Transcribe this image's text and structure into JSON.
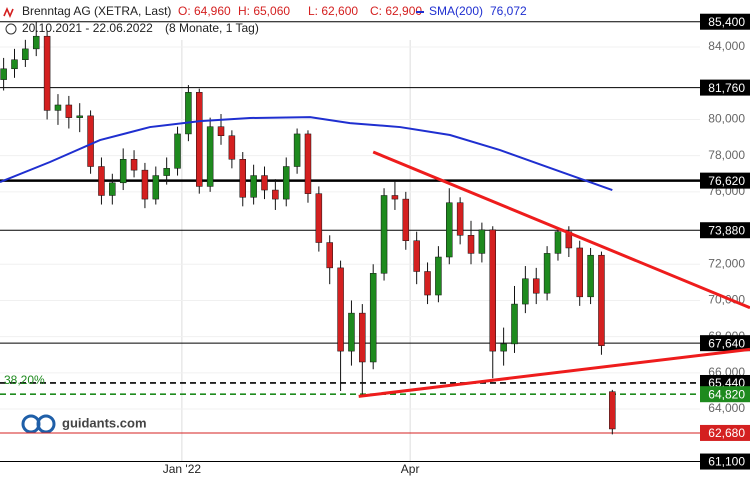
{
  "chart_data": {
    "type": "candlestick",
    "title": "Brenntag AG (XETRA, Last)",
    "quotes": [
      "O: 64,960",
      "H: 65,060",
      "L: 62,600",
      "C: 62,900"
    ],
    "period": "20.10.2021 - 22.06.2022",
    "period_note": "(8 Monate, 1 Tag)",
    "watermark": "guidants.com",
    "up_color": "#1e8a1e",
    "down_color": "#d42020",
    "xlim": [
      0,
      207
    ],
    "ylim": [
      60080,
      86600
    ],
    "xticks": [
      {
        "value": 50.2,
        "label": "Jan '22"
      },
      {
        "value": 113.2,
        "label": "Apr"
      }
    ],
    "yticks": [
      {
        "value": 84000,
        "label": "84,000"
      },
      {
        "value": 80000,
        "label": "80,000"
      },
      {
        "value": 78000,
        "label": "78,000"
      },
      {
        "value": 76000,
        "label": "76,000"
      },
      {
        "value": 72000,
        "label": "72,000"
      },
      {
        "value": 70000,
        "label": "70,000"
      },
      {
        "value": 68000,
        "label": "68,000"
      },
      {
        "value": 66000,
        "label": "66,000"
      },
      {
        "value": 64000,
        "label": "64,000"
      }
    ],
    "x": [
      1,
      4,
      7,
      10,
      13,
      16,
      19,
      22,
      25,
      28,
      31,
      34,
      37,
      40,
      43,
      46,
      49,
      52,
      55,
      58,
      61,
      64,
      67,
      70,
      73,
      76,
      79,
      82,
      85,
      88,
      91,
      94,
      97,
      100,
      103,
      106,
      109,
      112,
      115,
      118,
      121,
      124,
      127,
      130,
      133,
      136,
      139,
      142,
      145,
      148,
      151,
      154,
      157,
      160,
      163,
      166,
      169
    ],
    "open": [
      82200,
      82800,
      83300,
      83900,
      84600,
      80500,
      80800,
      80100,
      80200,
      77400,
      75800,
      76500,
      77800,
      77200,
      75600,
      76900,
      77300,
      79200,
      81500,
      76300,
      79600,
      79100,
      77800,
      75700,
      76900,
      76100,
      75600,
      77400,
      79200,
      75900,
      73200,
      71800,
      67200,
      69300,
      66600,
      71500,
      75800,
      75600,
      73300,
      71600,
      70300,
      72400,
      75400,
      73600,
      72600,
      73900,
      67200,
      67600,
      69800,
      71200,
      70400,
      72600,
      73800,
      72900,
      70200,
      72500,
      64960
    ],
    "high": [
      83400,
      83900,
      84400,
      85400,
      84900,
      81400,
      81300,
      80900,
      80500,
      77900,
      77000,
      78400,
      78300,
      77600,
      77400,
      77900,
      79600,
      81900,
      81700,
      80100,
      80300,
      79400,
      78200,
      77500,
      77400,
      76700,
      77900,
      79500,
      79400,
      76300,
      73600,
      72200,
      70000,
      69800,
      72000,
      76200,
      76600,
      76000,
      73800,
      72100,
      73000,
      76200,
      75700,
      74400,
      74300,
      74100,
      68500,
      70800,
      71900,
      71800,
      73000,
      74000,
      74100,
      73300,
      72900,
      72700,
      65060
    ],
    "low": [
      81600,
      82300,
      82900,
      83500,
      80000,
      79700,
      79500,
      79300,
      77000,
      75300,
      75300,
      76100,
      76800,
      75100,
      75300,
      76400,
      76900,
      78800,
      75900,
      76000,
      78600,
      77300,
      75200,
      75300,
      75600,
      75000,
      75200,
      77000,
      75400,
      72700,
      70900,
      65000,
      66400,
      64800,
      66200,
      71100,
      75000,
      72800,
      70900,
      69800,
      69900,
      72000,
      73100,
      72000,
      72100,
      65700,
      66400,
      67100,
      69300,
      69800,
      70000,
      72200,
      72400,
      69700,
      69800,
      67000,
      62600
    ],
    "close": [
      82800,
      83300,
      83900,
      84600,
      80500,
      80800,
      80100,
      80200,
      77400,
      75800,
      76500,
      77800,
      77200,
      75600,
      76900,
      77300,
      79200,
      81500,
      76300,
      79600,
      79100,
      77800,
      75700,
      76900,
      76100,
      75600,
      77400,
      79200,
      75900,
      73200,
      71800,
      67200,
      69300,
      66600,
      71500,
      75800,
      75600,
      73300,
      71600,
      70300,
      72400,
      75400,
      73600,
      72600,
      73900,
      67200,
      67600,
      69800,
      71200,
      70400,
      72600,
      73800,
      72900,
      70200,
      72500,
      67500,
      62900
    ],
    "sma": {
      "name": "SMA(200)",
      "last": "76,072",
      "color": "#1f2fd0",
      "x": [
        0,
        13.8,
        27.6,
        41.4,
        55.2,
        69,
        85.6,
        96.6,
        110.4,
        124.2,
        138,
        151.8,
        169
      ],
      "values": [
        76540,
        77650,
        78860,
        79580,
        79910,
        80080,
        80130,
        79800,
        79580,
        79140,
        78310,
        77320,
        76100
      ]
    },
    "trend_lines": [
      {
        "color": "#ee1c1c",
        "x": [
          103,
          207
        ],
        "values": [
          78200,
          69600
        ]
      },
      {
        "color": "#ee1c1c",
        "x": [
          99,
          207
        ],
        "values": [
          64700,
          67300
        ]
      }
    ],
    "levels": [
      {
        "value": 85400,
        "label": "85,400",
        "color": "#000000",
        "style": "solid"
      },
      {
        "value": 81760,
        "label": "81,760",
        "color": "#000000",
        "style": "solid"
      },
      {
        "value": 76620,
        "label": "76,620",
        "color": "#000000",
        "style": "thick"
      },
      {
        "value": 73880,
        "label": "73,880",
        "color": "#000000",
        "style": "solid"
      },
      {
        "value": 67640,
        "label": "67,640",
        "color": "#000000",
        "style": "solid"
      },
      {
        "value": 65440,
        "label": "65,440",
        "color": "#000000",
        "style": "dashed"
      },
      {
        "value": 64820,
        "label": "64,820",
        "color": "#1e8a1e",
        "style": "dashed"
      },
      {
        "value": 62680,
        "label": "62,680",
        "color": "#d42020",
        "style": "solid"
      },
      {
        "value": 61100,
        "label": "61,100",
        "color": "#000000",
        "style": "solid"
      }
    ],
    "fib_label": "38,20%"
  }
}
